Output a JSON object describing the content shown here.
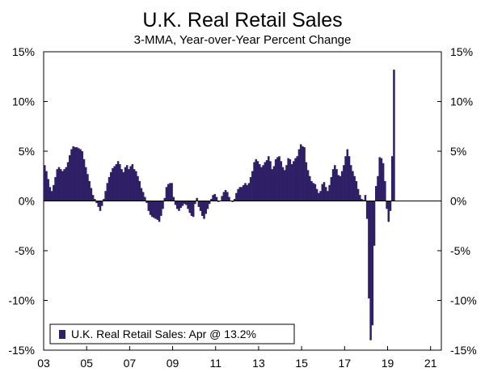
{
  "chart_data": {
    "type": "bar",
    "title": "U.K. Real Retail Sales",
    "subtitle": "3-MMA, Year-over-Year Percent Change",
    "ylim": [
      -15,
      15
    ],
    "xlim": [
      2003.0,
      2021.5
    ],
    "y_ticks": [
      15,
      10,
      5,
      0,
      -5,
      -10,
      -15
    ],
    "y_tick_labels": [
      "15%",
      "10%",
      "5%",
      "0%",
      "-5%",
      "-10%",
      "-15%"
    ],
    "x_ticks": [
      2003,
      2005,
      2007,
      2009,
      2011,
      2013,
      2015,
      2017,
      2019,
      2021
    ],
    "x_tick_labels": [
      "03",
      "05",
      "07",
      "09",
      "11",
      "13",
      "15",
      "17",
      "19",
      "21"
    ],
    "grid": false,
    "bar_color": "#2e1f66",
    "legend": {
      "position": "bottom-left",
      "label": "U.K. Real Retail Sales: Apr @ 13.2%"
    },
    "series": [
      {
        "name": "U.K. Real Retail Sales",
        "start": "2003-01",
        "frequency": "monthly",
        "values": [
          3.6,
          3.0,
          2.2,
          1.4,
          1.0,
          1.6,
          2.4,
          3.2,
          3.4,
          3.2,
          3.0,
          3.2,
          3.4,
          3.9,
          4.6,
          5.2,
          5.5,
          5.4,
          5.4,
          5.3,
          5.2,
          5.0,
          4.2,
          3.4,
          2.7,
          2.0,
          1.3,
          0.6,
          0.2,
          -0.2,
          -0.6,
          -1.0,
          -0.5,
          0.2,
          1.0,
          1.8,
          2.4,
          2.9,
          3.3,
          3.5,
          3.7,
          4.0,
          3.7,
          3.2,
          2.9,
          3.4,
          3.6,
          3.2,
          3.5,
          3.7,
          3.2,
          3.0,
          2.5,
          2.0,
          1.3,
          0.9,
          0.4,
          -0.2,
          -1.0,
          -1.4,
          -1.6,
          -1.7,
          -1.8,
          -1.9,
          -2.1,
          -1.5,
          -0.8,
          0.3,
          1.4,
          1.7,
          1.8,
          1.8,
          0.4,
          -0.4,
          -0.8,
          -1.0,
          -0.7,
          -0.5,
          -0.3,
          -0.4,
          -0.8,
          -1.2,
          -1.5,
          -1.6,
          -0.3,
          0.3,
          -0.6,
          -1.0,
          -1.5,
          -1.8,
          -1.3,
          -0.8,
          -0.3,
          0.2,
          0.6,
          0.7,
          0.4,
          -0.1,
          0.0,
          0.5,
          0.9,
          1.1,
          0.9,
          0.4,
          0.0,
          -0.1,
          0.2,
          0.8,
          1.2,
          1.4,
          1.4,
          1.6,
          1.8,
          1.6,
          1.8,
          2.4,
          3.0,
          3.9,
          4.2,
          4.0,
          3.7,
          3.4,
          3.6,
          3.9,
          4.1,
          4.5,
          4.0,
          3.2,
          3.5,
          4.2,
          4.4,
          4.5,
          4.0,
          3.4,
          3.1,
          3.6,
          4.3,
          4.2,
          3.7,
          4.0,
          4.3,
          4.5,
          5.2,
          5.7,
          5.5,
          5.4,
          3.9,
          3.1,
          2.5,
          2.0,
          1.8,
          1.7,
          1.2,
          0.8,
          1.0,
          1.7,
          1.9,
          1.4,
          1.0,
          1.6,
          2.4,
          3.2,
          3.6,
          3.2,
          2.6,
          2.5,
          3.0,
          3.6,
          4.5,
          5.2,
          4.5,
          3.6,
          3.0,
          2.5,
          2.0,
          1.2,
          0.6,
          0.2,
          0.1,
          0.6,
          -1.8,
          -9.8,
          -14.0,
          -12.5,
          -4.5,
          1.5,
          2.5,
          4.4,
          4.3,
          3.8,
          2.0,
          -0.8,
          -2.1,
          -1.0,
          4.5,
          13.2
        ]
      }
    ]
  }
}
